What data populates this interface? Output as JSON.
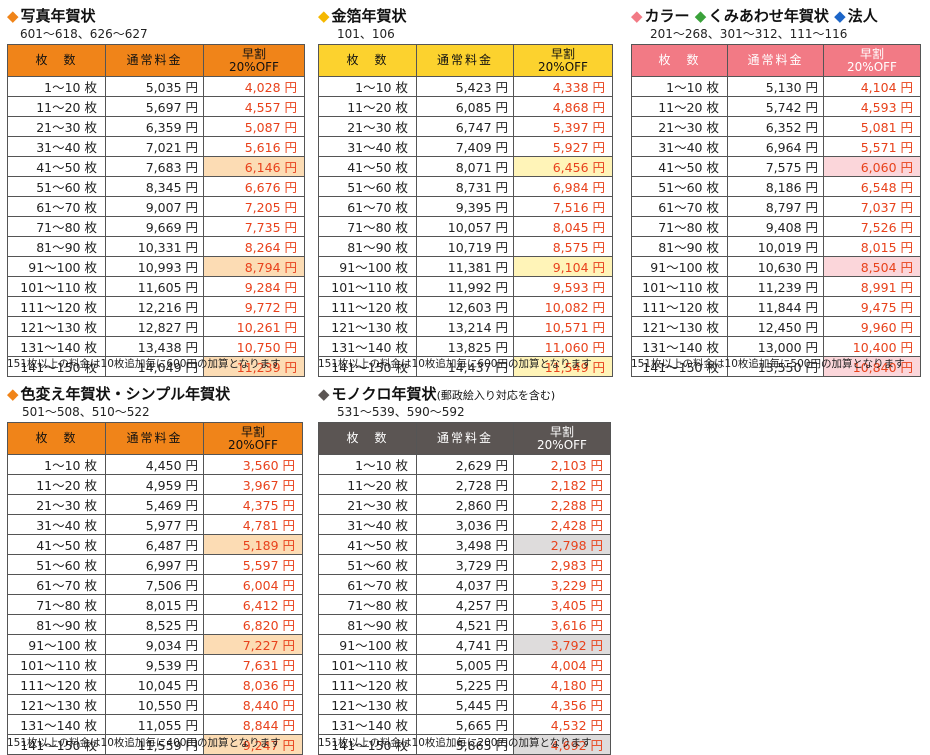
{
  "colors": {
    "orange": "#f08419",
    "yellow": "#fcd22e",
    "pink": "#f27a85",
    "green": "#3aa23a",
    "blue": "#1d66c8",
    "dark": "#5b5553",
    "discount_text": "#e8421c"
  },
  "headers": {
    "qty": "枚　数",
    "normal": "通常料金",
    "early_line1": "早割",
    "early_line2": "20%OFF"
  },
  "sections": [
    {
      "title_parts": [
        {
          "marker": "◆",
          "color": "#f08419",
          "text": "写真年賀状"
        }
      ],
      "title_suffix": "",
      "codes": "601〜618、626〜627",
      "header_color": "#f08419",
      "header_text_color": "#111111",
      "highlight_color": "#fcdcb4",
      "highlight_rows": [
        4,
        9,
        14
      ],
      "rows": [
        [
          "1〜10 枚",
          "5,035 円",
          "4,028 円"
        ],
        [
          "11〜20 枚",
          "5,697 円",
          "4,557 円"
        ],
        [
          "21〜30 枚",
          "6,359 円",
          "5,087 円"
        ],
        [
          "31〜40 枚",
          "7,021 円",
          "5,616 円"
        ],
        [
          "41〜50 枚",
          "7,683 円",
          "6,146 円"
        ],
        [
          "51〜60 枚",
          "8,345 円",
          "6,676 円"
        ],
        [
          "61〜70 枚",
          "9,007 円",
          "7,205 円"
        ],
        [
          "71〜80 枚",
          "9,669 円",
          "7,735 円"
        ],
        [
          "81〜90 枚",
          "10,331 円",
          "8,264 円"
        ],
        [
          "91〜100 枚",
          "10,993 円",
          "8,794 円"
        ],
        [
          "101〜110 枚",
          "11,605 円",
          "9,284 円"
        ],
        [
          "111〜120 枚",
          "12,216 円",
          "9,772 円"
        ],
        [
          "121〜130 枚",
          "12,827 円",
          "10,261 円"
        ],
        [
          "131〜140 枚",
          "13,438 円",
          "10,750 円"
        ],
        [
          "141〜150 枚",
          "14,049 円",
          "11,239 円"
        ]
      ],
      "note": "151枚以上の料金は10枚追加毎に600円の加算となります"
    },
    {
      "title_parts": [
        {
          "marker": "◆",
          "color": "#f5b800",
          "text": "金箔年賀状"
        }
      ],
      "title_suffix": "",
      "codes": "101、106",
      "header_color": "#fcd22e",
      "header_text_color": "#111111",
      "highlight_color": "#fff4b8",
      "highlight_rows": [
        4,
        9,
        14
      ],
      "rows": [
        [
          "1〜10 枚",
          "5,423 円",
          "4,338 円"
        ],
        [
          "11〜20 枚",
          "6,085 円",
          "4,868 円"
        ],
        [
          "21〜30 枚",
          "6,747 円",
          "5,397 円"
        ],
        [
          "31〜40 枚",
          "7,409 円",
          "5,927 円"
        ],
        [
          "41〜50 枚",
          "8,071 円",
          "6,456 円"
        ],
        [
          "51〜60 枚",
          "8,731 円",
          "6,984 円"
        ],
        [
          "61〜70 枚",
          "9,395 円",
          "7,516 円"
        ],
        [
          "71〜80 枚",
          "10,057 円",
          "8,045 円"
        ],
        [
          "81〜90 枚",
          "10,719 円",
          "8,575 円"
        ],
        [
          "91〜100 枚",
          "11,381 円",
          "9,104 円"
        ],
        [
          "101〜110 枚",
          "11,992 円",
          "9,593 円"
        ],
        [
          "111〜120 枚",
          "12,603 円",
          "10,082 円"
        ],
        [
          "121〜130 枚",
          "13,214 円",
          "10,571 円"
        ],
        [
          "131〜140 枚",
          "13,825 円",
          "11,060 円"
        ],
        [
          "141〜150 枚",
          "14,437 円",
          "11,549 円"
        ]
      ],
      "note": "151枚以上の料金は10枚追加毎に600円の加算となります"
    },
    {
      "title_parts": [
        {
          "marker": "◆",
          "color": "#f27a85",
          "text": "カラー "
        },
        {
          "marker": "◆",
          "color": "#3aa23a",
          "text": "くみあわせ年賀状 "
        },
        {
          "marker": "◆",
          "color": "#1d66c8",
          "text": "法人"
        }
      ],
      "title_suffix": "",
      "codes": "201〜268、301〜312、111〜116",
      "header_color": "#f27a85",
      "header_text_color": "#ffffff",
      "highlight_color": "#fbd6da",
      "highlight_rows": [
        4,
        9,
        14
      ],
      "rows": [
        [
          "1〜10 枚",
          "5,130 円",
          "4,104 円"
        ],
        [
          "11〜20 枚",
          "5,742 円",
          "4,593 円"
        ],
        [
          "21〜30 枚",
          "6,352 円",
          "5,081 円"
        ],
        [
          "31〜40 枚",
          "6,964 円",
          "5,571 円"
        ],
        [
          "41〜50 枚",
          "7,575 円",
          "6,060 円"
        ],
        [
          "51〜60 枚",
          "8,186 円",
          "6,548 円"
        ],
        [
          "61〜70 枚",
          "8,797 円",
          "7,037 円"
        ],
        [
          "71〜80 枚",
          "9,408 円",
          "7,526 円"
        ],
        [
          "81〜90 枚",
          "10,019 円",
          "8,015 円"
        ],
        [
          "91〜100 枚",
          "10,630 円",
          "8,504 円"
        ],
        [
          "101〜110 枚",
          "11,239 円",
          "8,991 円"
        ],
        [
          "111〜120 枚",
          "11,844 円",
          "9,475 円"
        ],
        [
          "121〜130 枚",
          "12,450 円",
          "9,960 円"
        ],
        [
          "131〜140 枚",
          "13,000 円",
          "10,400 円"
        ],
        [
          "141〜150 枚",
          "13,550 円",
          "10,840 円"
        ]
      ],
      "note": "151枚以上の料金は10枚追加毎に500円の加算となります"
    },
    {
      "title_parts": [
        {
          "marker": "◆",
          "color": "#f08419",
          "text": "色変え年賀状・シンプル年賀状"
        }
      ],
      "title_suffix": "",
      "codes": "501〜508、510〜522",
      "header_color": "#f08419",
      "header_text_color": "#111111",
      "highlight_color": "#fcdcb4",
      "highlight_rows": [
        4,
        9,
        14
      ],
      "rows": [
        [
          "1〜10 枚",
          "4,450 円",
          "3,560 円"
        ],
        [
          "11〜20 枚",
          "4,959 円",
          "3,967 円"
        ],
        [
          "21〜30 枚",
          "5,469 円",
          "4,375 円"
        ],
        [
          "31〜40 枚",
          "5,977 円",
          "4,781 円"
        ],
        [
          "41〜50 枚",
          "6,487 円",
          "5,189 円"
        ],
        [
          "51〜60 枚",
          "6,997 円",
          "5,597 円"
        ],
        [
          "61〜70 枚",
          "7,506 円",
          "6,004 円"
        ],
        [
          "71〜80 枚",
          "8,015 円",
          "6,412 円"
        ],
        [
          "81〜90 枚",
          "8,525 円",
          "6,820 円"
        ],
        [
          "91〜100 枚",
          "9,034 円",
          "7,227 円"
        ],
        [
          "101〜110 枚",
          "9,539 円",
          "7,631 円"
        ],
        [
          "111〜120 枚",
          "10,045 円",
          "8,036 円"
        ],
        [
          "121〜130 枚",
          "10,550 円",
          "8,440 円"
        ],
        [
          "131〜140 枚",
          "11,055 円",
          "8,844 円"
        ],
        [
          "141〜150 枚",
          "11,559 円",
          "9,247 円"
        ]
      ],
      "note": "151枚以上の料金は10枚追加毎に400円の加算となります"
    },
    {
      "title_parts": [
        {
          "marker": "◆",
          "color": "#5b5553",
          "text": "モノクロ年賀状"
        }
      ],
      "title_suffix": "(郵政絵入り対応を含む)",
      "codes": "531〜539、590〜592",
      "header_color": "#5b5553",
      "header_text_color": "#ffffff",
      "highlight_color": "#dedcdc",
      "highlight_rows": [
        4,
        9,
        14
      ],
      "rows": [
        [
          "1〜10 枚",
          "2,629 円",
          "2,103 円"
        ],
        [
          "11〜20 枚",
          "2,728 円",
          "2,182 円"
        ],
        [
          "21〜30 枚",
          "2,860 円",
          "2,288 円"
        ],
        [
          "31〜40 枚",
          "3,036 円",
          "2,428 円"
        ],
        [
          "41〜50 枚",
          "3,498 円",
          "2,798 円"
        ],
        [
          "51〜60 枚",
          "3,729 円",
          "2,983 円"
        ],
        [
          "61〜70 枚",
          "4,037 円",
          "3,229 円"
        ],
        [
          "71〜80 枚",
          "4,257 円",
          "3,405 円"
        ],
        [
          "81〜90 枚",
          "4,521 円",
          "3,616 円"
        ],
        [
          "91〜100 枚",
          "4,741 円",
          "3,792 円"
        ],
        [
          "101〜110 枚",
          "5,005 円",
          "4,004 円"
        ],
        [
          "111〜120 枚",
          "5,225 円",
          "4,180 円"
        ],
        [
          "121〜130 枚",
          "5,445 円",
          "4,356 円"
        ],
        [
          "131〜140 枚",
          "5,665 円",
          "4,532 円"
        ],
        [
          "141〜150 枚",
          "5,865 円",
          "4,692 円"
        ]
      ],
      "note": "151枚以上の料金は10枚追加毎に200円の加算となります"
    }
  ]
}
